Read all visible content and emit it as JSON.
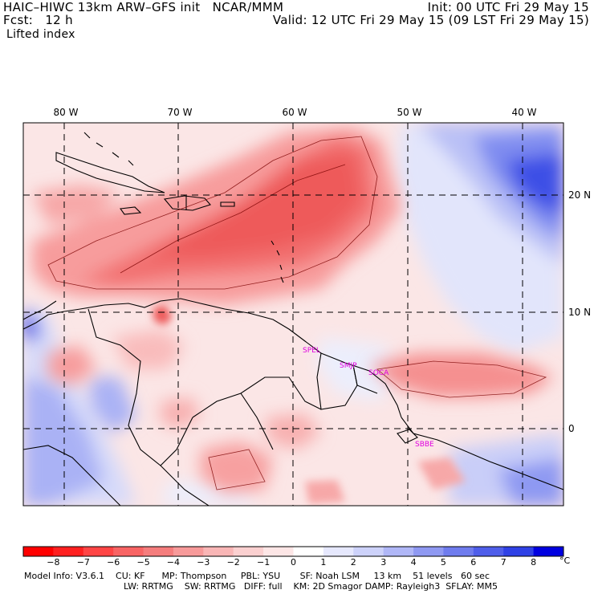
{
  "header": {
    "model_title": "HAIC–HIWC 13km ARW–GFS init   NCAR/MMM",
    "forecast_hour": "Fcst:   12 h",
    "field_name": "Lifted index",
    "init_time": "Init: 00 UTC Fri 29 May 15",
    "valid_time": "Valid: 12 UTC Fri 29 May 15 (09 LST Fri 29 May 15)"
  },
  "map": {
    "lon_labels": [
      "80 W",
      "70 W",
      "60 W",
      "50 W",
      "40 W"
    ],
    "lat_labels": [
      "20 N",
      "10 N",
      "0"
    ],
    "site_labels": [
      "SPEL",
      "SMJP",
      "SOCA",
      "SBBE"
    ],
    "colors": {
      "strong_neg": "#f05a5a",
      "mid_neg": "#f79c9c",
      "weak_neg": "#fbd4d4",
      "weak_pos": "#dde2fb",
      "mid_pos": "#9aa6f4",
      "strong_pos": "#2d3fe6"
    }
  },
  "colorbar": {
    "labels": [
      "−8",
      "−7",
      "−6",
      "−5",
      "−4",
      "−3",
      "−2",
      "−1",
      "0",
      "1",
      "2",
      "3",
      "4",
      "5",
      "6",
      "7",
      "8"
    ],
    "unit": "°C",
    "colors": [
      "#ff0000",
      "#ff2020",
      "#ff4545",
      "#f86464",
      "#f57d7d",
      "#f79a9a",
      "#f9b6b6",
      "#fbd0d0",
      "#fde6e6",
      "#ffffff",
      "#e6e8fd",
      "#cdd2fa",
      "#b0b7f7",
      "#8f99f2",
      "#6f7cee",
      "#4f5eea",
      "#2f41e6",
      "#0000e0"
    ]
  },
  "footer": {
    "line1": "Model Info: V3.6.1    CU: KF      MP: Thompson     PBL: YSU       SF: Noah LSM     13 km    51 levels   60 sec",
    "line2": "LW: RRTMG    SW: RRTMG   DIFF: full    KM: 2D Smagor DAMP: Rayleigh3  SFLAY: MM5"
  }
}
